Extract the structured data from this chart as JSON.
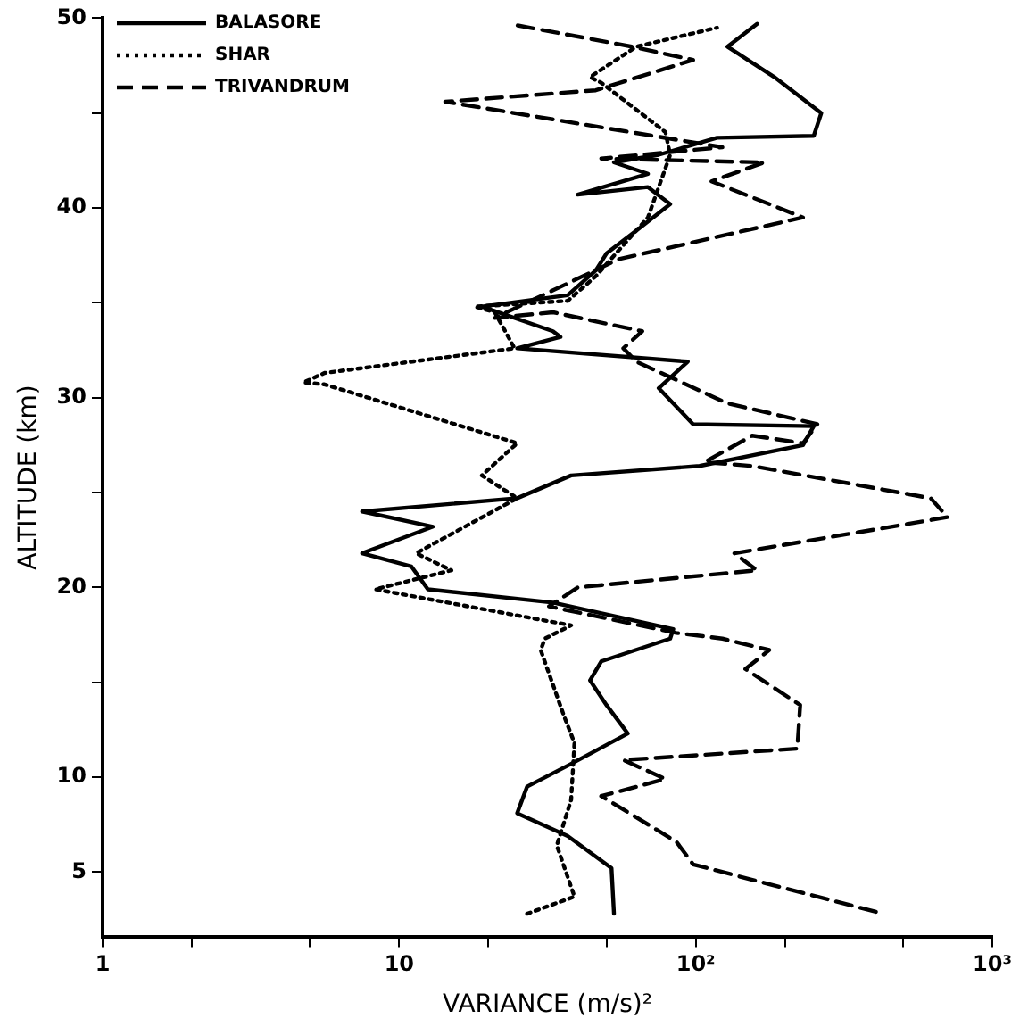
{
  "chart_data": {
    "type": "line",
    "xlabel": "VARIANCE (m/s)²",
    "ylabel": "ALTITUDE (km)",
    "log": "x",
    "legend": "top left",
    "marker": "none",
    "grid": false,
    "xlim": [
      1,
      1000
    ],
    "xticks": [
      1,
      {
        "value": 2,
        "label": null
      },
      {
        "value": 5,
        "label": null
      },
      10,
      {
        "value": 20,
        "label": null
      },
      {
        "value": 50,
        "label": null
      },
      {
        "value": 100,
        "label": "10²"
      },
      {
        "value": 200,
        "label": null
      },
      {
        "value": 500,
        "label": null
      },
      {
        "value": 1000,
        "label": "10³"
      }
    ],
    "ylim": [
      1.6,
      50
    ],
    "yticks": [
      5,
      10,
      {
        "value": 15,
        "label": null
      },
      20,
      {
        "value": 25,
        "label": null
      },
      30,
      {
        "value": 35,
        "label": null
      },
      40,
      {
        "value": 45,
        "label": null
      },
      50
    ],
    "series": [
      {
        "name": "BALASORE",
        "color": "#000000",
        "line_style": "solid",
        "x": [
          53,
          52,
          37,
          25,
          27,
          38,
          59,
          50,
          44,
          48,
          82,
          84,
          33,
          12.5,
          11,
          7.5,
          13,
          7.5,
          25,
          38,
          103,
          230,
          250,
          98,
          75,
          94,
          25,
          35,
          33,
          19,
          37,
          46,
          50,
          63,
          82,
          69,
          40,
          69,
          53,
          75,
          118,
          250,
          265,
          184,
          128,
          161
        ],
        "values": [
          2.8,
          5.2,
          6.9,
          8.1,
          9.5,
          10.7,
          12.3,
          13.8,
          15.1,
          16.1,
          17.3,
          17.8,
          19.2,
          19.9,
          21.1,
          21.8,
          23.2,
          24,
          24.7,
          25.9,
          26.4,
          27.5,
          28.5,
          28.6,
          30.5,
          31.9,
          32.6,
          33.2,
          33.5,
          34.8,
          35.4,
          36.7,
          37.6,
          38.8,
          40.2,
          41.1,
          40.7,
          41.8,
          42.4,
          42.8,
          43.7,
          43.8,
          45,
          46.9,
          48.5,
          49.7
        ]
      },
      {
        "name": "SHAR",
        "color": "#000000",
        "line_style": "dotted",
        "x": [
          27,
          39,
          34,
          38,
          39,
          36,
          30,
          31,
          38,
          8.3,
          15,
          11.4,
          25,
          19,
          25,
          5.6,
          4.75,
          5.6,
          24.5,
          21,
          18,
          37,
          46,
          69,
          82,
          79,
          48,
          44,
          63,
          118
        ],
        "values": [
          2.8,
          3.7,
          6.4,
          8.8,
          11.8,
          13.2,
          16.7,
          17.3,
          18,
          19.9,
          20.9,
          21.8,
          24.7,
          25.9,
          27.6,
          30.7,
          30.8,
          31.3,
          32.6,
          34.5,
          34.8,
          35.1,
          36.4,
          39.5,
          42.8,
          44,
          46.6,
          46.9,
          48.5,
          49.5
        ]
      },
      {
        "name": "TRIVANDRUM",
        "color": "#000000",
        "line_style": "dashed",
        "x": [
          405,
          98,
          86,
          48,
          79,
          57,
          220,
          225,
          147,
          177,
          123,
          86,
          32,
          40,
          161,
          135,
          706,
          620,
          155,
          107,
          155,
          230,
          257,
          128,
          63,
          57,
          66,
          33,
          21,
          55,
          230,
          113,
          170,
          48,
          123,
          14.3,
          46,
          98,
          61,
          23.5
        ],
        "values": [
          2.9,
          5.4,
          6.6,
          9,
          9.9,
          10.9,
          11.5,
          13.8,
          15.7,
          16.7,
          17.3,
          17.6,
          19,
          20,
          20.9,
          21.8,
          23.7,
          24.7,
          26.4,
          26.6,
          28,
          27.6,
          28.6,
          29.7,
          31.9,
          32.6,
          33.5,
          34.5,
          34.2,
          37.3,
          39.5,
          41.4,
          42.4,
          42.6,
          43.2,
          45.6,
          46.2,
          47.8,
          48.5,
          49.7
        ]
      }
    ]
  }
}
